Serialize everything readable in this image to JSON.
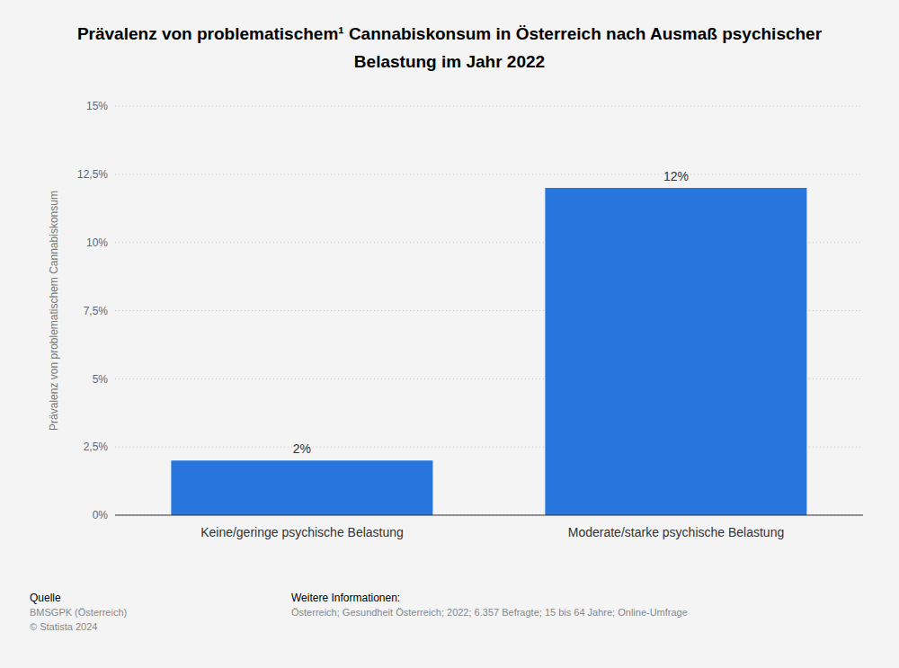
{
  "chart_data": {
    "type": "bar",
    "title": "Prävalenz von problematischem¹ Cannabiskonsum in Österreich nach Ausmaß psychischer Belastung im Jahr 2022",
    "y_label": "Prävalenz von problematischem Cannabiskonsum",
    "categories": [
      "Keine/geringe psychische Belastung",
      "Moderate/starke psychische Belastung"
    ],
    "values": [
      2,
      12
    ],
    "value_labels": [
      "2%",
      "12%"
    ],
    "data_labels": true,
    "color": "#2876dd",
    "ylim": [
      0,
      15
    ],
    "yticks": [
      {
        "value": 0,
        "label": "0%"
      },
      {
        "value": 2.5,
        "label": "2,5%"
      },
      {
        "value": 5,
        "label": "5%"
      },
      {
        "value": 7.5,
        "label": "7,5%"
      },
      {
        "value": 10,
        "label": "10%"
      },
      {
        "value": 12.5,
        "label": "12,5%"
      },
      {
        "value": 15,
        "label": "15%"
      }
    ],
    "grid": true,
    "source_label": "Quelle",
    "source": [
      "BMSGPK (Österreich)",
      "© Statista 2024"
    ],
    "info_label": "Weitere Informationen:",
    "info": "Österreich; Gesundheit Österreich; 2022; 6.357 Befragte; 15 bis 64 Jahre; Online-Umfrage"
  }
}
